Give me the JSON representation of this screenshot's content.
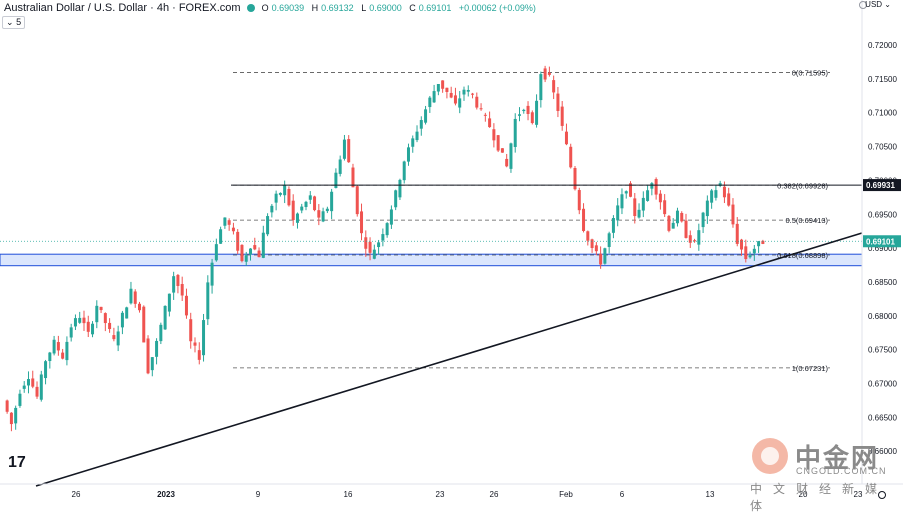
{
  "header": {
    "title": "Australian Dollar / U.S. Dollar · 4h · FOREX.com",
    "open_label": "O",
    "open": "0.69039",
    "high_label": "H",
    "high": "0.69132",
    "low_label": "L",
    "low": "0.69000",
    "close_label": "C",
    "close": "0.69101",
    "change": "+0.00062 (+0.09%)",
    "indicator_count": "5",
    "currency": "USD"
  },
  "branding": {
    "tv_logo": "17"
  },
  "watermark": {
    "cn": "中金网",
    "en": "CNGOLD.COM.CN",
    "sub": "中文财经新媒体"
  },
  "colors": {
    "up": "#26a69a",
    "down": "#ef5350",
    "line": "#131722",
    "zone_fill": "#dbe6fd",
    "zone_border": "#1e4ed8",
    "last_price_bg": "#26a69a"
  },
  "chart_data": {
    "type": "candlestick",
    "title": "Australian Dollar / U.S. Dollar · 4h · FOREX.com",
    "y_axis": {
      "range": [
        0.6625,
        0.7235
      ],
      "ticks": [
        "0.72000",
        "0.71500",
        "0.71000",
        "0.70500",
        "0.70000",
        "0.69500",
        "0.69000",
        "0.68500",
        "0.68000",
        "0.67500",
        "0.67000",
        "0.66500",
        "0.66000"
      ],
      "side": "right"
    },
    "x_axis": {
      "ticks": [
        "26",
        "2023",
        "9",
        "16",
        "23",
        "26",
        "Feb",
        "6",
        "13",
        "20",
        "23"
      ]
    },
    "fibonacci": {
      "levels": [
        {
          "ratio": "0",
          "price": 0.71595,
          "label": "0(0.71595)"
        },
        {
          "ratio": "0.382",
          "price": 0.69928,
          "label": "0.382(0.69928)"
        },
        {
          "ratio": "0.5",
          "price": 0.69413,
          "label": "0.5(0.69413)"
        },
        {
          "ratio": "0.618",
          "price": 0.68898,
          "label": "0.618(0.68898)"
        },
        {
          "ratio": "1",
          "price": 0.67231,
          "label": "1(0.67231)"
        }
      ]
    },
    "horizontal_line": {
      "price": 0.69931,
      "label": "0.69931"
    },
    "support_zone": {
      "top": 0.6891,
      "bottom": 0.6874
    },
    "trendline": {
      "start": {
        "date": "2022-12-21",
        "price": 0.6602
      },
      "end": {
        "date": "2023-02-22",
        "price": 0.6926
      }
    },
    "last_price": {
      "price": 0.69101,
      "label": "0.69101"
    },
    "price_path": [
      0.6675,
      0.664,
      0.669,
      0.6712,
      0.668,
      0.6735,
      0.676,
      0.674,
      0.6785,
      0.68,
      0.6772,
      0.6816,
      0.679,
      0.6762,
      0.68,
      0.6836,
      0.681,
      0.672,
      0.676,
      0.681,
      0.686,
      0.683,
      0.676,
      0.674,
      0.685,
      0.691,
      0.6945,
      0.692,
      0.688,
      0.6905,
      0.689,
      0.695,
      0.6975,
      0.699,
      0.694,
      0.696,
      0.6975,
      0.694,
      0.696,
      0.701,
      0.706,
      0.699,
      0.692,
      0.689,
      0.691,
      0.694,
      0.698,
      0.703,
      0.706,
      0.709,
      0.712,
      0.7145,
      0.713,
      0.711,
      0.7135,
      0.7125,
      0.71,
      0.708,
      0.705,
      0.702,
      0.709,
      0.711,
      0.708,
      0.716,
      0.715,
      0.7105,
      0.705,
      0.699,
      0.693,
      0.69,
      0.688,
      0.692,
      0.696,
      0.699,
      0.695,
      0.697,
      0.7,
      0.697,
      0.693,
      0.695,
      0.692,
      0.6905,
      0.695,
      0.698,
      0.6995,
      0.696,
      0.691,
      0.6885,
      0.69,
      0.691
    ]
  }
}
